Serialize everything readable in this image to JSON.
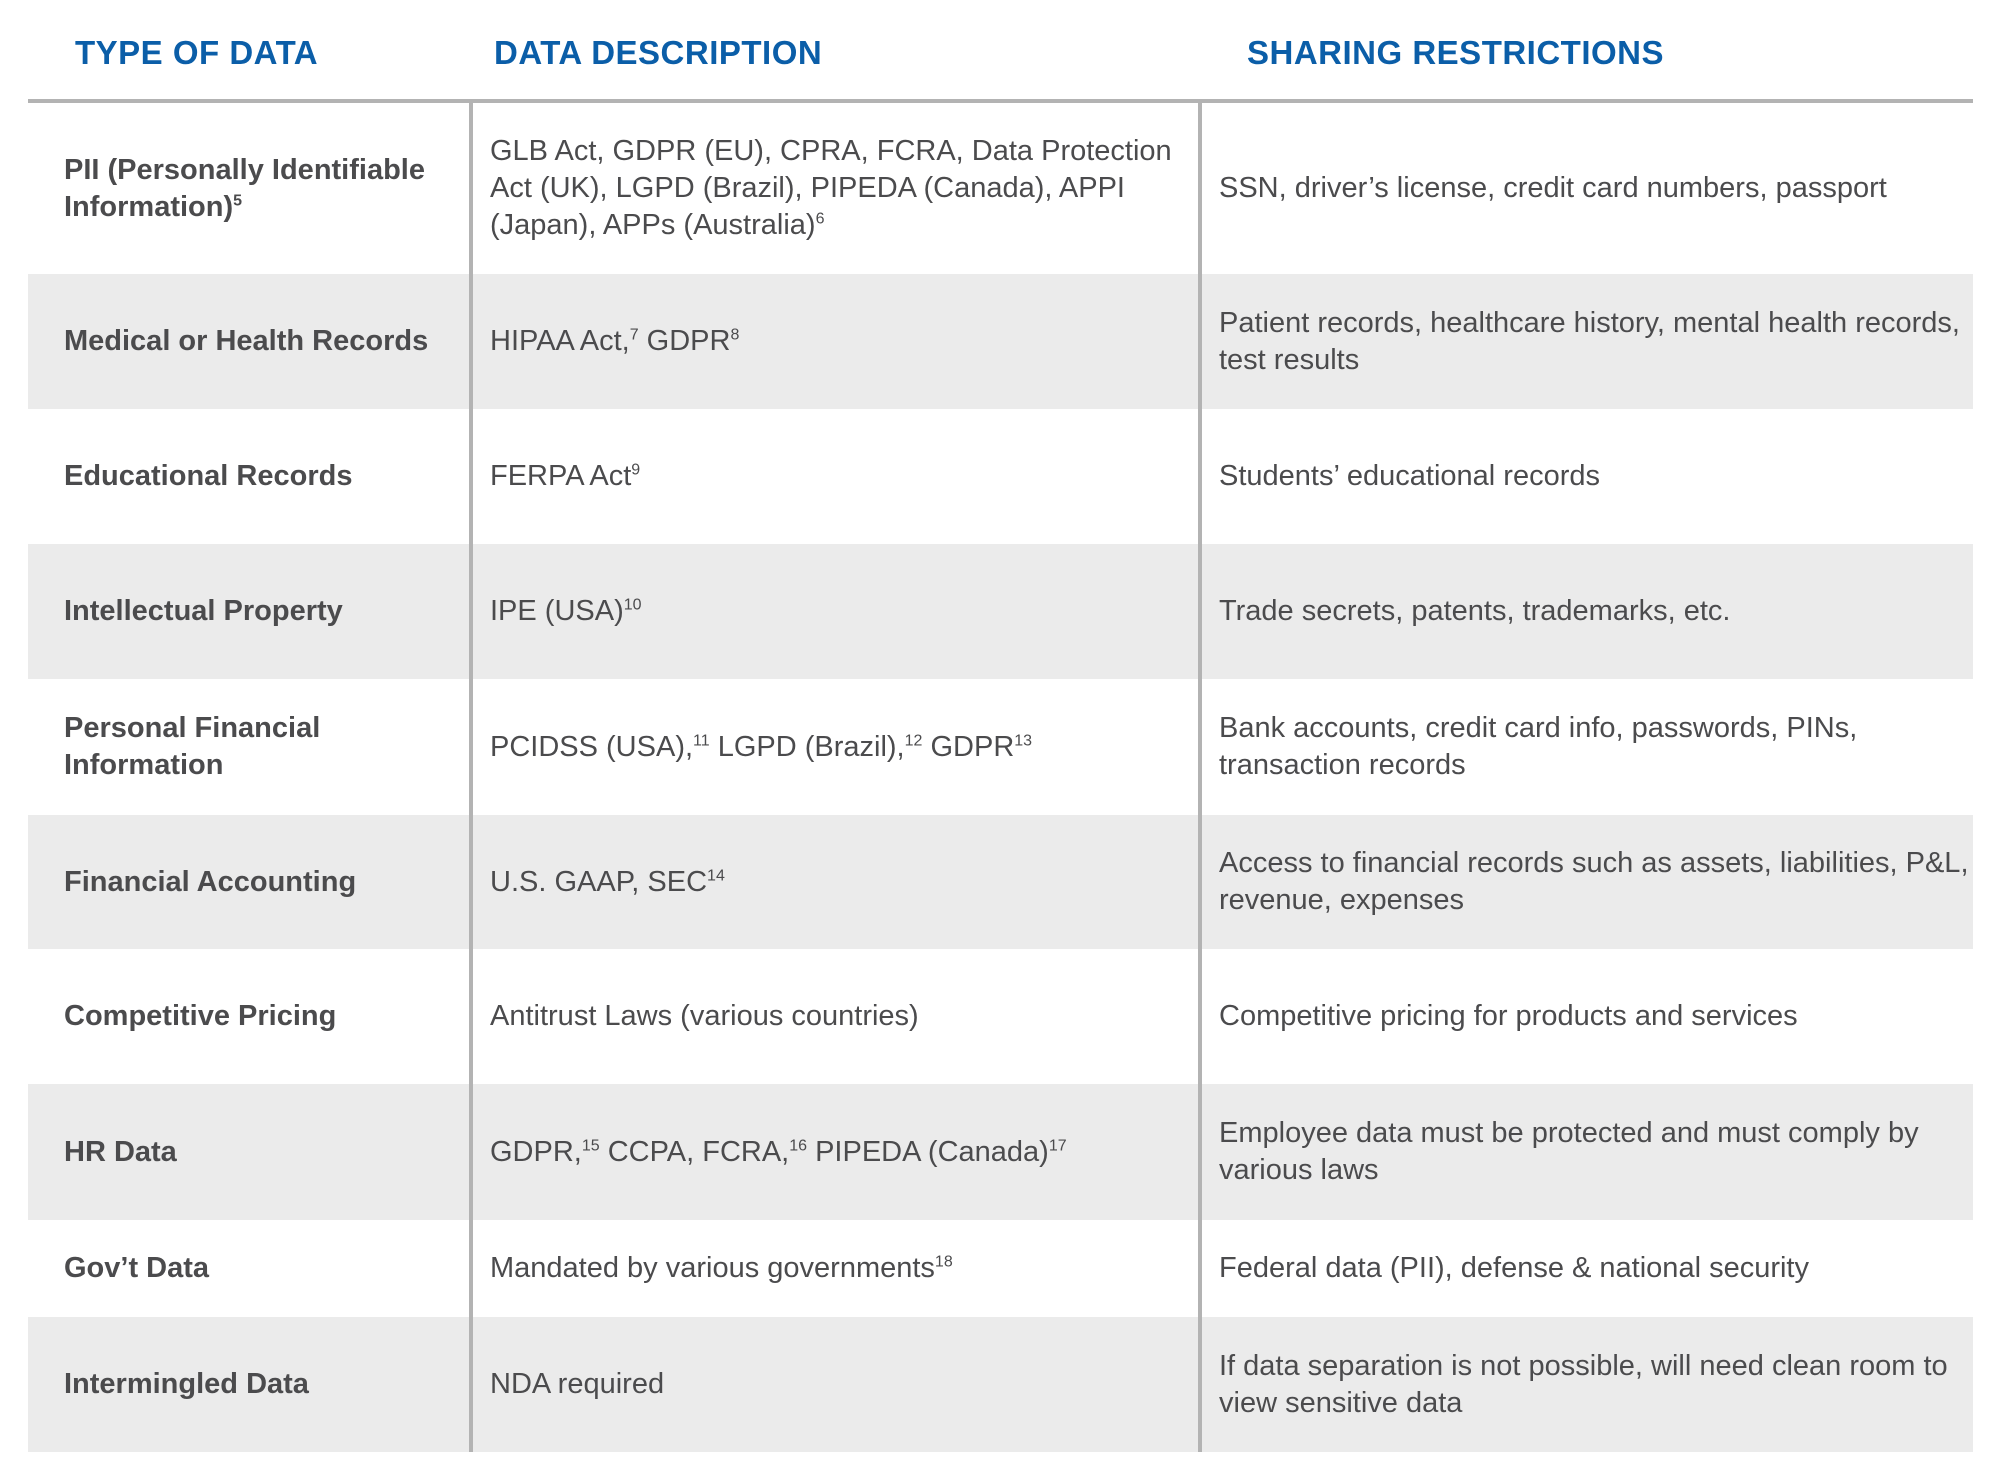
{
  "colors": {
    "header": "#0b5ea8",
    "text": "#4b4b4d",
    "stripe": "#ebebeb",
    "rule": "#b3b3b3"
  },
  "headers": [
    "TYPE OF DATA",
    "DATA DESCRIPTION",
    "SHARING RESTRICTIONS"
  ],
  "rows": [
    {
      "type": [
        {
          "t": "PII (Personally Identifiable Information)"
        },
        {
          "sup": "5"
        }
      ],
      "description": [
        {
          "t": "GLB Act, GDPR (EU), CPRA, FCRA, Data Protection Act (UK), LGPD (Brazil), PIPEDA (Canada), APPI (Japan), APPs (Australia)"
        },
        {
          "sup": "6"
        }
      ],
      "restrictions": [
        {
          "t": "SSN, driver’s license, credit card numbers, passport"
        }
      ]
    },
    {
      "type": [
        {
          "t": "Medical or Health Records"
        }
      ],
      "description": [
        {
          "t": "HIPAA Act,"
        },
        {
          "sup": "7"
        },
        {
          "t": " GDPR"
        },
        {
          "sup": "8"
        }
      ],
      "restrictions": [
        {
          "t": "Patient records, healthcare history, mental health records, test results"
        }
      ]
    },
    {
      "type": [
        {
          "t": "Educational Records"
        }
      ],
      "description": [
        {
          "t": "FERPA Act"
        },
        {
          "sup": "9"
        }
      ],
      "restrictions": [
        {
          "t": "Students’ educational records"
        }
      ]
    },
    {
      "type": [
        {
          "t": "Intellectual Property"
        }
      ],
      "description": [
        {
          "t": "IPE (USA)"
        },
        {
          "sup": "10"
        }
      ],
      "restrictions": [
        {
          "t": "Trade secrets, patents, trademarks, etc."
        }
      ]
    },
    {
      "type": [
        {
          "t": "Personal Financial Information"
        }
      ],
      "description": [
        {
          "t": "PCIDSS (USA),"
        },
        {
          "sup": "11"
        },
        {
          "t": "  LGPD (Brazil),"
        },
        {
          "sup": "12"
        },
        {
          "t": " GDPR"
        },
        {
          "sup": "13"
        }
      ],
      "restrictions": [
        {
          "t": "Bank accounts, credit card info, passwords, PINs, transaction records"
        }
      ]
    },
    {
      "type": [
        {
          "t": "Financial Accounting"
        }
      ],
      "description": [
        {
          "t": "U.S. GAAP, SEC"
        },
        {
          "sup": "14"
        }
      ],
      "restrictions": [
        {
          "t": "Access to financial records such as assets, liabilities, P&L, revenue, expenses"
        }
      ]
    },
    {
      "type": [
        {
          "t": "Competitive Pricing"
        }
      ],
      "description": [
        {
          "t": "Antitrust Laws (various countries)"
        }
      ],
      "restrictions": [
        {
          "t": "Competitive pricing for products and services"
        }
      ]
    },
    {
      "type": [
        {
          "t": "HR Data"
        }
      ],
      "description": [
        {
          "t": "GDPR,"
        },
        {
          "sup": "15"
        },
        {
          "t": " CCPA, FCRA,"
        },
        {
          "sup": "16"
        },
        {
          "t": " PIPEDA (Canada)"
        },
        {
          "sup": "17"
        }
      ],
      "restrictions": [
        {
          "t": "Employee data must be protected and must comply by various laws"
        }
      ]
    },
    {
      "type": [
        {
          "t": "Gov’t Data"
        }
      ],
      "description": [
        {
          "t": "Mandated by various governments"
        },
        {
          "sup": "18"
        }
      ],
      "restrictions": [
        {
          "t": "Federal data (PII), defense & national security"
        }
      ]
    },
    {
      "type": [
        {
          "t": "Intermingled Data"
        }
      ],
      "description": [
        {
          "t": "NDA required"
        }
      ],
      "restrictions": [
        {
          "t": "If data separation is not possible, will need clean room to view sensitive data"
        }
      ]
    }
  ]
}
